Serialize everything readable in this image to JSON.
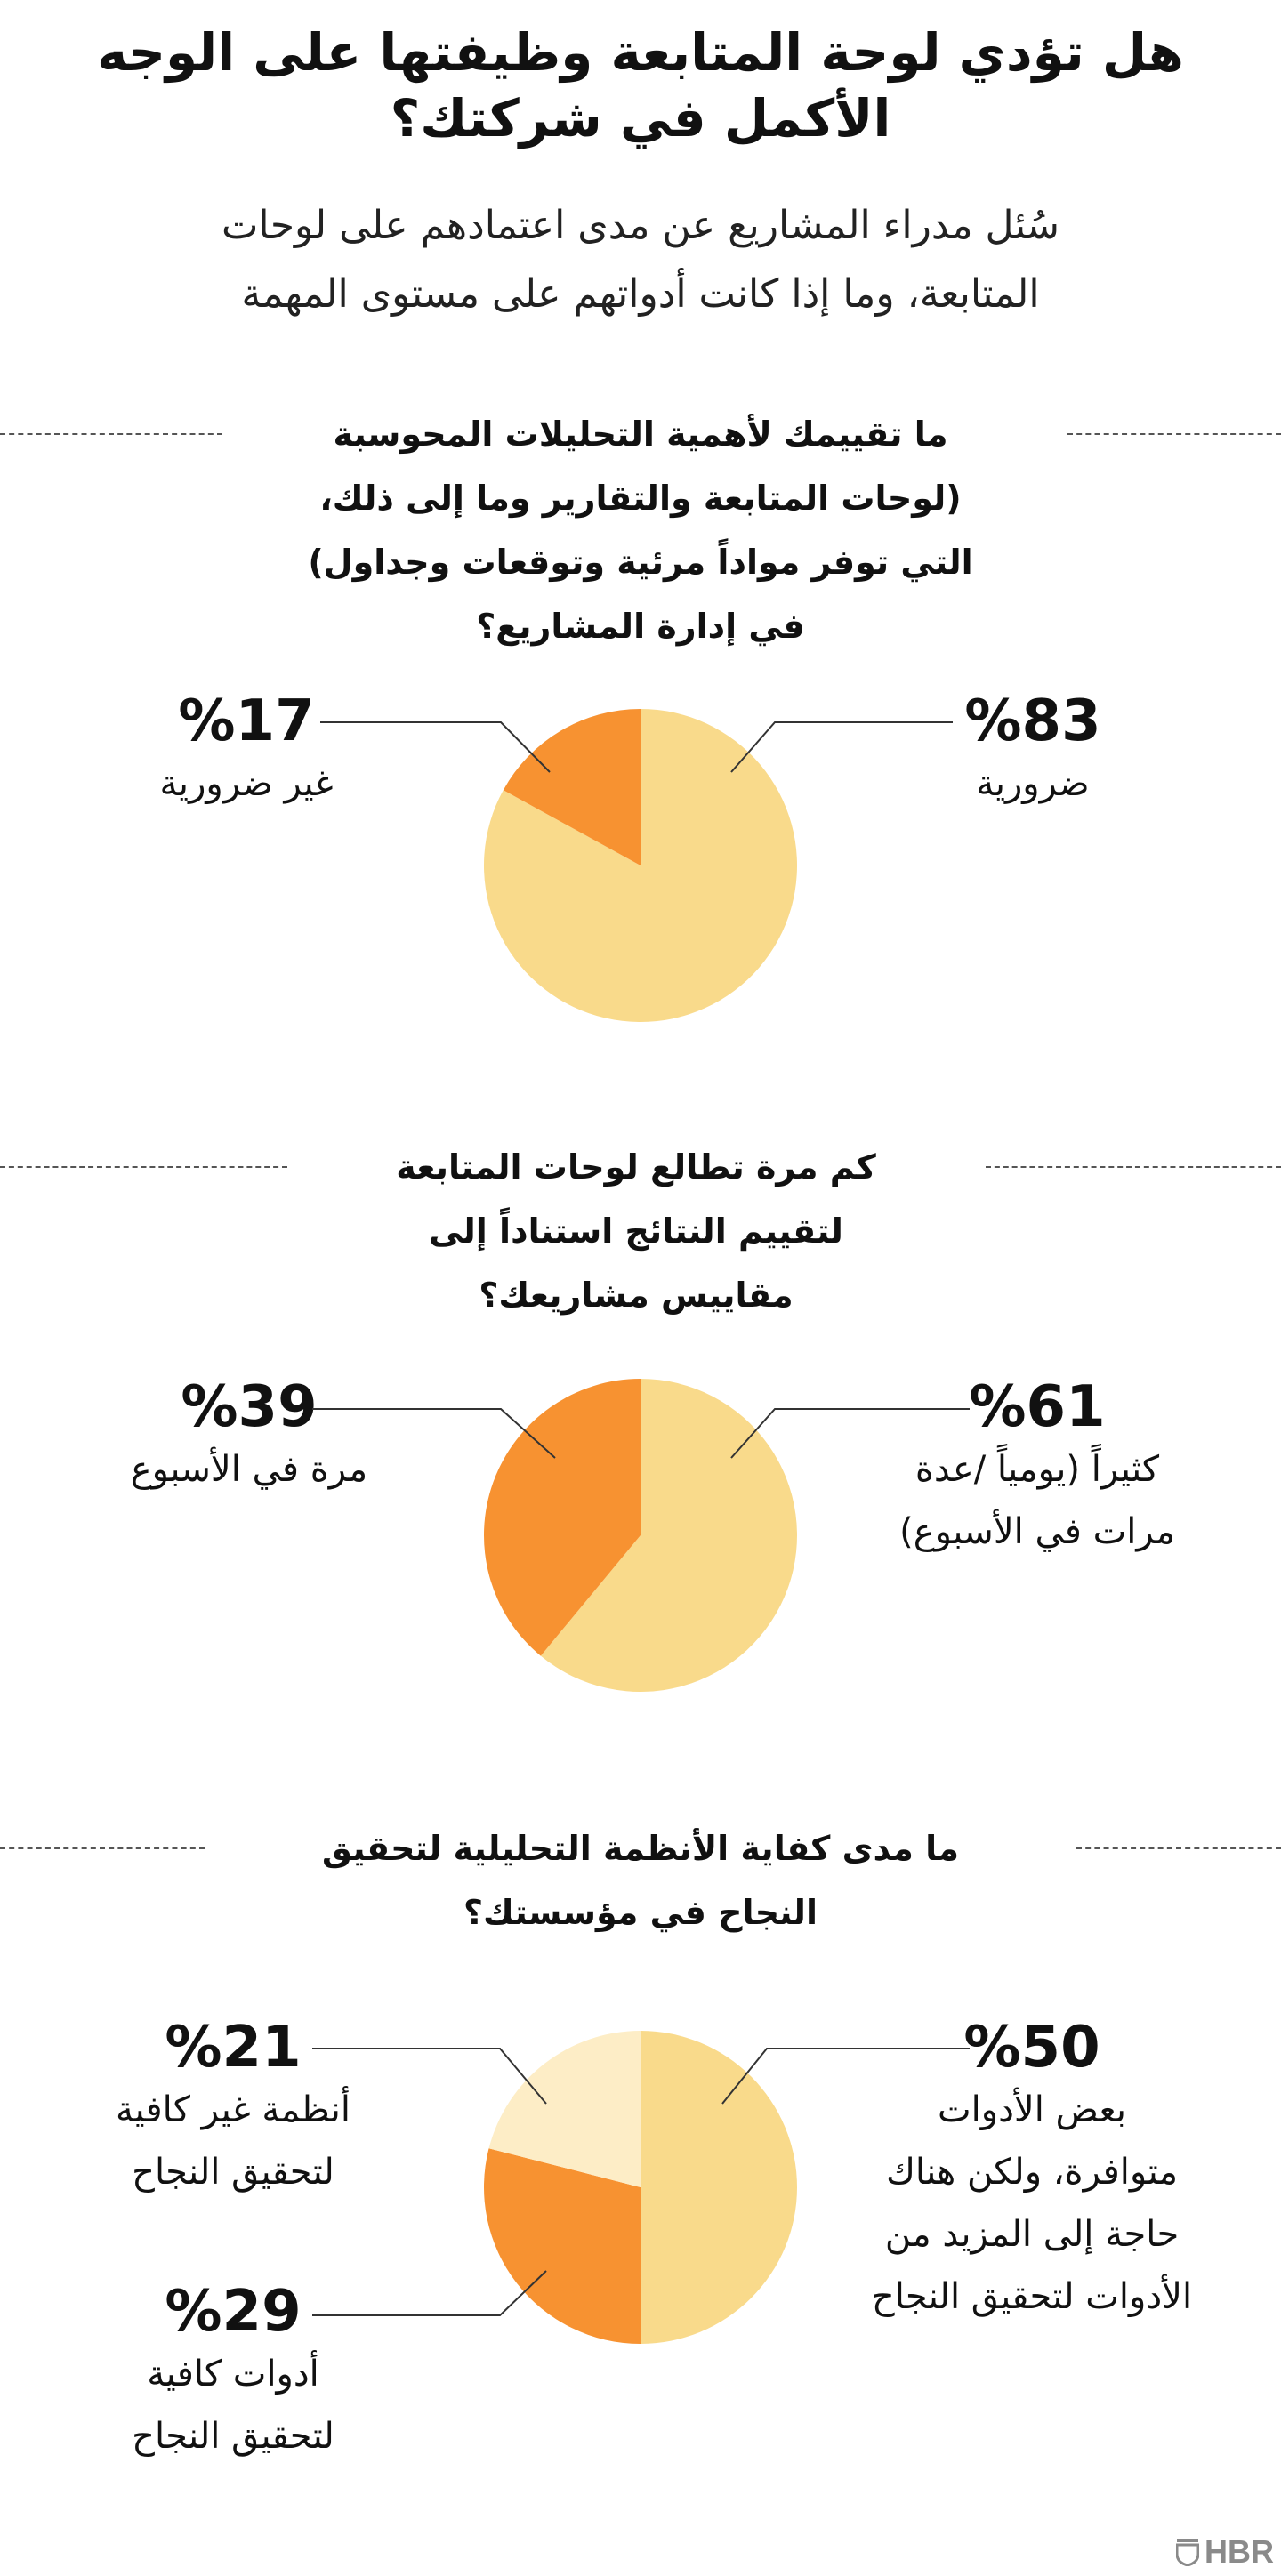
{
  "header": {
    "title_line1": "هل تؤدي لوحة المتابعة وظيفتها على الوجه",
    "title_line2": "الأكمل في شركتك؟",
    "subtitle_line1": "سُئل مدراء المشاريع عن مدى اعتمادهم على لوحات",
    "subtitle_line2": "المتابعة، وما إذا كانت أدواتهم على مستوى المهمة"
  },
  "colors": {
    "light": "#f9da8b",
    "orange": "#f79231",
    "pale": "#fdedc6",
    "line": "#333333"
  },
  "chart_data": [
    {
      "type": "pie",
      "title_lines": [
        "ما تقييمك لأهمية التحليلات المحوسبة",
        "(لوحات المتابعة والتقارير وما إلى ذلك،",
        "التي توفر مواداً مرئية وتوقعات وجداول)",
        "في إدارة المشاريع؟"
      ],
      "slices": [
        {
          "value": 83,
          "pct_label": "%83",
          "label_lines": [
            "ضرورية"
          ],
          "color": "#f9da8b"
        },
        {
          "value": 17,
          "pct_label": "%17",
          "label_lines": [
            "غير ضرورية"
          ],
          "color": "#f79231"
        }
      ]
    },
    {
      "type": "pie",
      "title_lines": [
        "كم مرة تطالع لوحات المتابعة",
        "لتقييم النتائج استناداً إلى",
        "مقاييس مشاريعك؟"
      ],
      "slices": [
        {
          "value": 61,
          "pct_label": "%61",
          "label_lines": [
            "كثيراً (يومياً /عدة",
            "مرات في الأسبوع)"
          ],
          "color": "#f9da8b"
        },
        {
          "value": 39,
          "pct_label": "%39",
          "label_lines": [
            "مرة في الأسبوع"
          ],
          "color": "#f79231"
        }
      ]
    },
    {
      "type": "pie",
      "title_lines": [
        "ما مدى كفاية الأنظمة التحليلية لتحقيق",
        "النجاح في مؤسستك؟"
      ],
      "slices": [
        {
          "value": 50,
          "pct_label": "%50",
          "label_lines": [
            "بعض الأدوات",
            "متوافرة، ولكن هناك",
            "حاجة إلى المزيد من",
            "الأدوات لتحقيق النجاح"
          ],
          "color": "#f9da8b"
        },
        {
          "value": 29,
          "pct_label": "%29",
          "label_lines": [
            "أدوات كافية",
            "لتحقيق النجاح"
          ],
          "color": "#f79231"
        },
        {
          "value": 21,
          "pct_label": "%21",
          "label_lines": [
            "أنظمة غير كافية",
            "لتحقيق النجاح"
          ],
          "color": "#fdedc6"
        }
      ]
    }
  ],
  "footer": {
    "logo_text": "HBR"
  }
}
